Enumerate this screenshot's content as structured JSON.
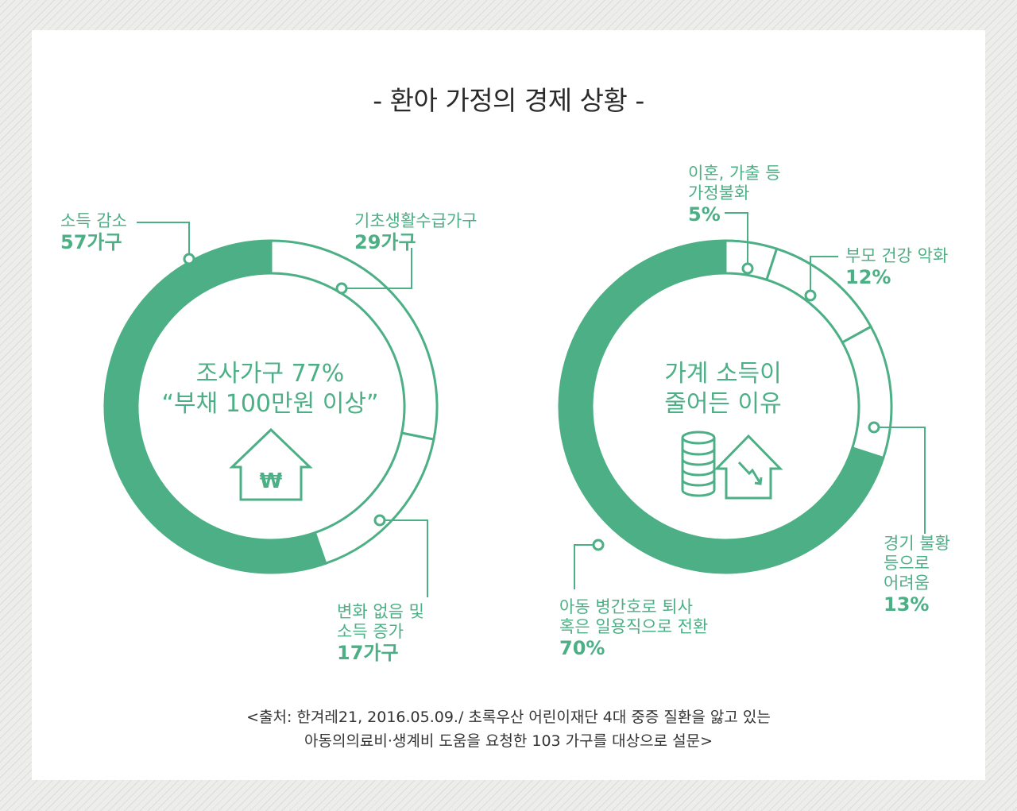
{
  "title": "- 환아 가정의 경제 상황 -",
  "colors": {
    "accent": "#4caf85",
    "text": "#2a2a2a"
  },
  "chart_data": [
    {
      "type": "pie",
      "center_text": [
        "조사가구 77%",
        "“부채 100만원 이상”"
      ],
      "center_icon": "house-won-icon",
      "slices": [
        {
          "label": "기초생활수급가구",
          "value_label": "29가구",
          "value": 29,
          "filled": false
        },
        {
          "label": "변화 없음 및 소득 증가",
          "value_label": "17가구",
          "value": 17,
          "filled": false
        },
        {
          "label": "소득 감소",
          "value_label": "57가구",
          "value": 57,
          "filled": true
        }
      ]
    },
    {
      "type": "pie",
      "center_text": [
        "가계 소득이",
        "줄어든 이유"
      ],
      "center_icon": "coins-house-decline-icon",
      "slices": [
        {
          "label": "이혼, 가출 등 가정불화",
          "value_label": "5%",
          "value": 5,
          "filled": false
        },
        {
          "label": "부모 건강 악화",
          "value_label": "12%",
          "value": 12,
          "filled": false
        },
        {
          "label": "경기 불황 등으로 어려움",
          "value_label": "13%",
          "value": 13,
          "filled": false
        },
        {
          "label": "아동 병간호로 퇴사 혹은 일용직으로 전환",
          "value_label": "70%",
          "value": 70,
          "filled": true
        }
      ]
    }
  ],
  "labels": {
    "left": {
      "income_decrease": {
        "line1": "소득 감소",
        "value": "57가구"
      },
      "basic_living": {
        "line1": "기초생활수급가구",
        "value": "29가구"
      },
      "no_change": {
        "line1": "변화 없음 및",
        "line2": "소득 증가",
        "value": "17가구"
      }
    },
    "right": {
      "divorce": {
        "line1": "이혼, 가출 등",
        "line2": "가정불화",
        "value": "5%"
      },
      "health": {
        "line1": "부모 건강 악화",
        "value": "12%"
      },
      "recession": {
        "line1": "경기 불황",
        "line2": "등으로",
        "line3": "어려움",
        "value": "13%"
      },
      "caregiving": {
        "line1": "아동 병간호로 퇴사",
        "line2": "혹은 일용직으로 전환",
        "value": "70%"
      }
    }
  },
  "center": {
    "left": {
      "line1": "조사가구 77%",
      "line2": "“부채 100만원 이상”"
    },
    "right": {
      "line1": "가계 소득이",
      "line2": "줄어든 이유"
    }
  },
  "source": {
    "line1": "<출처: 한겨레21, 2016.05.09./ 초록우산 어린이재단 4대 중증 질환을 앓고 있는",
    "line2": "아동의의료비·생계비 도움을 요청한 103 가구를 대상으로 설문>"
  }
}
